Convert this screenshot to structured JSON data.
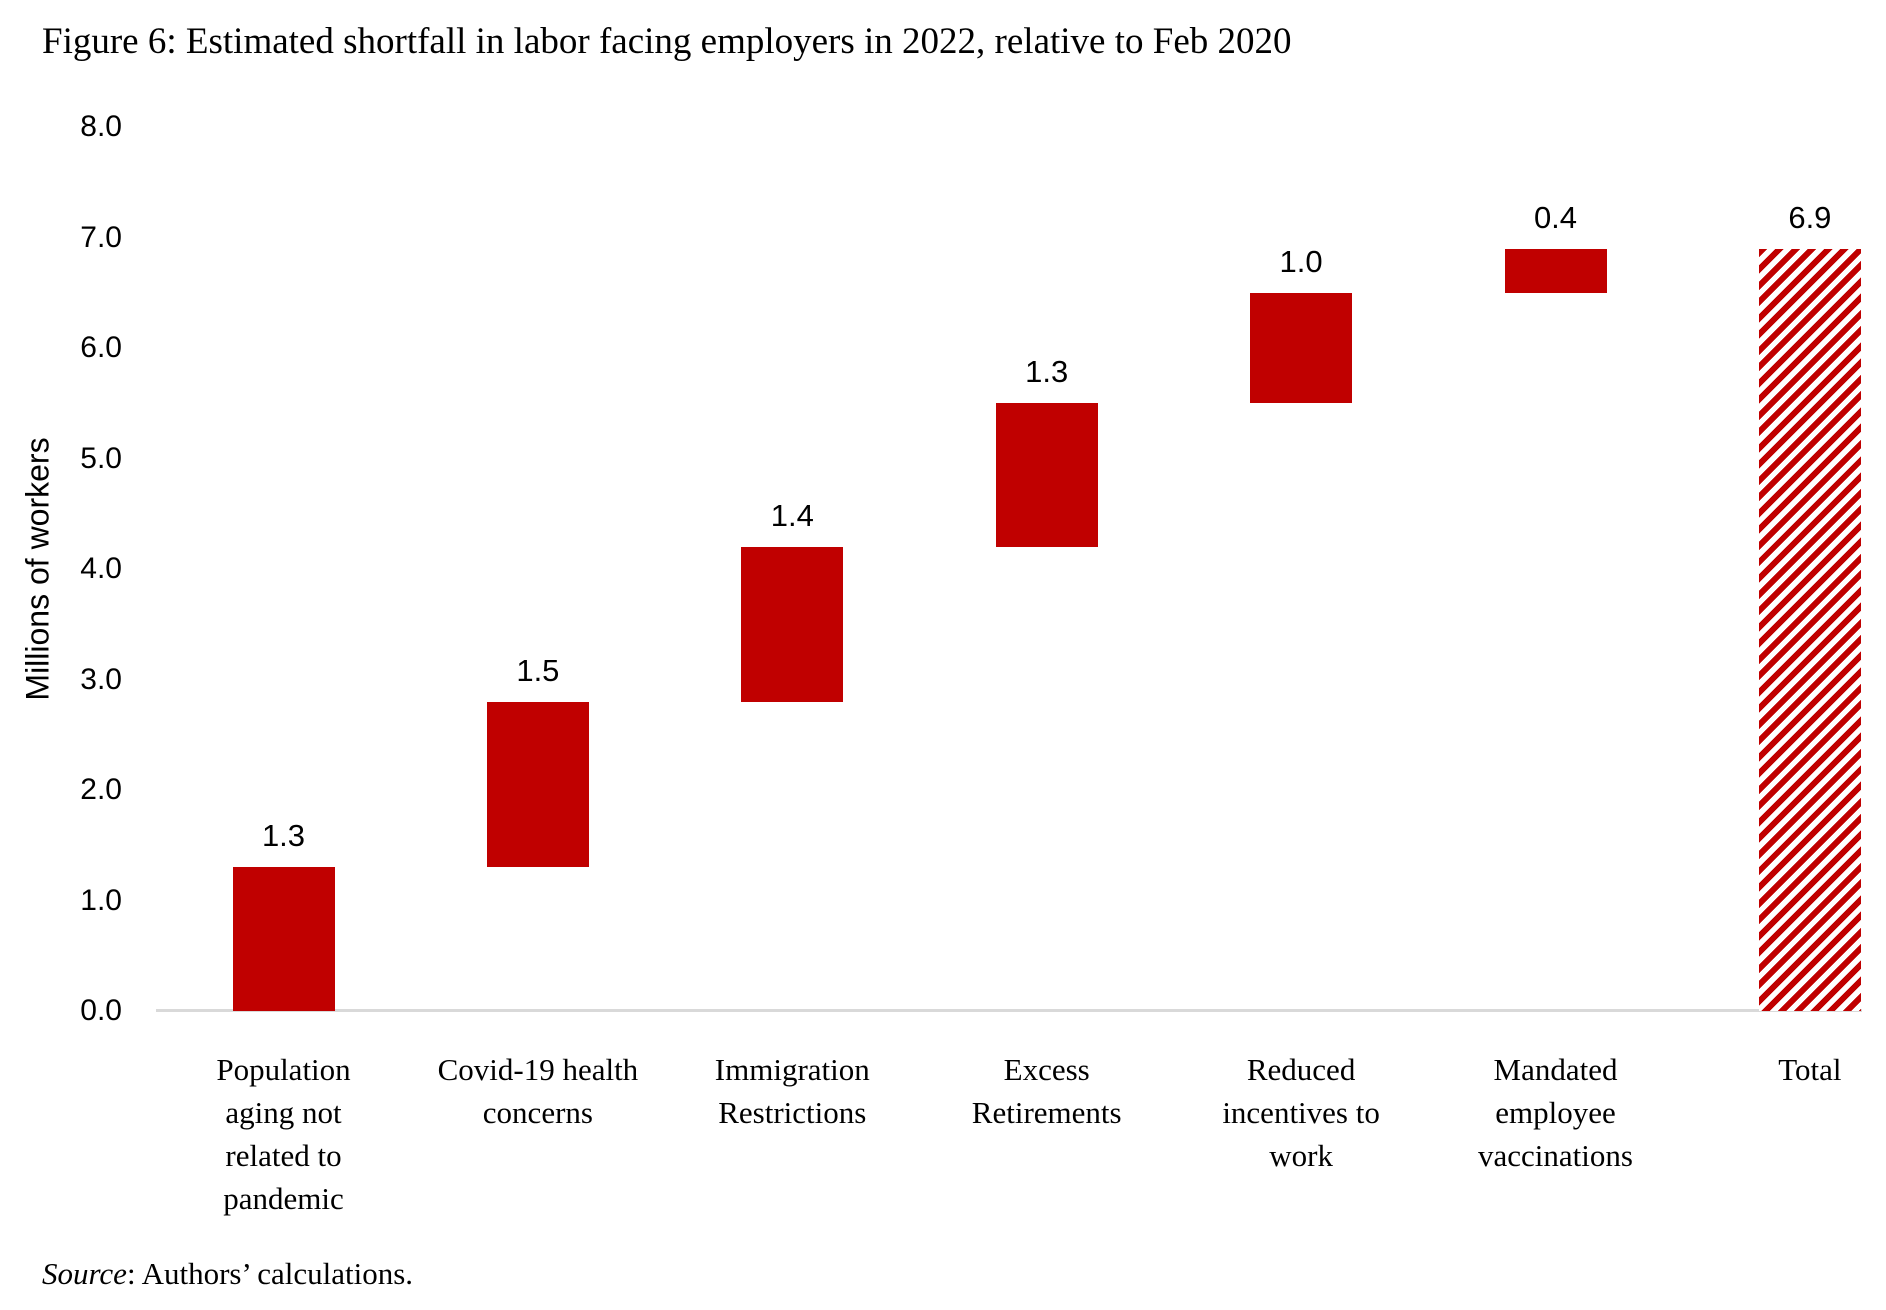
{
  "figure": {
    "source": {
      "label": "Source",
      "text": ": Authors’ calculations."
    }
  },
  "colors": {
    "bar_red": "#C00000",
    "axis_line_gray": "#D9D9D9",
    "text_black": "#000000",
    "background": "#FFFFFF"
  },
  "chart_data": {
    "type": "bar",
    "subtype": "waterfall",
    "title": "Figure 6: Estimated shortfall in labor facing employers in 2022, relative to Feb 2020",
    "ylabel": "Millions of workers",
    "xlabel": "",
    "ylim": [
      0.0,
      8.0
    ],
    "ytick_step": 1.0,
    "ytick_labels": [
      "0.0",
      "1.0",
      "2.0",
      "3.0",
      "4.0",
      "5.0",
      "6.0",
      "7.0",
      "8.0"
    ],
    "grid": false,
    "legend": "none",
    "bar_fill_pattern_total": "diagonal-hatch",
    "categories": [
      "Population aging not related to pandemic",
      "Covid-19 health concerns",
      "Immigration Restrictions",
      "Excess Retirements",
      "Reduced incentives to work",
      "Mandated employee vaccinations",
      "Total"
    ],
    "bars": [
      {
        "category_lines": [
          "Population",
          "aging not",
          "related to",
          "pandemic"
        ],
        "value": 1.3,
        "value_label": "1.3",
        "start": 0.0,
        "end": 1.3,
        "fill": "solid"
      },
      {
        "category_lines": [
          "Covid-19 health",
          "concerns"
        ],
        "value": 1.5,
        "value_label": "1.5",
        "start": 1.3,
        "end": 2.8,
        "fill": "solid"
      },
      {
        "category_lines": [
          "Immigration",
          "Restrictions"
        ],
        "value": 1.4,
        "value_label": "1.4",
        "start": 2.8,
        "end": 4.2,
        "fill": "solid"
      },
      {
        "category_lines": [
          "Excess",
          "Retirements"
        ],
        "value": 1.3,
        "value_label": "1.3",
        "start": 4.2,
        "end": 5.5,
        "fill": "solid"
      },
      {
        "category_lines": [
          "Reduced",
          "incentives to",
          "work"
        ],
        "value": 1.0,
        "value_label": "1.0",
        "start": 5.5,
        "end": 6.5,
        "fill": "solid"
      },
      {
        "category_lines": [
          "Mandated",
          "employee",
          "vaccinations"
        ],
        "value": 0.4,
        "value_label": "0.4",
        "start": 6.5,
        "end": 6.9,
        "fill": "solid"
      },
      {
        "category_lines": [
          "Total"
        ],
        "value": 6.9,
        "value_label": "6.9",
        "start": 0.0,
        "end": 6.9,
        "fill": "hatched"
      }
    ]
  }
}
